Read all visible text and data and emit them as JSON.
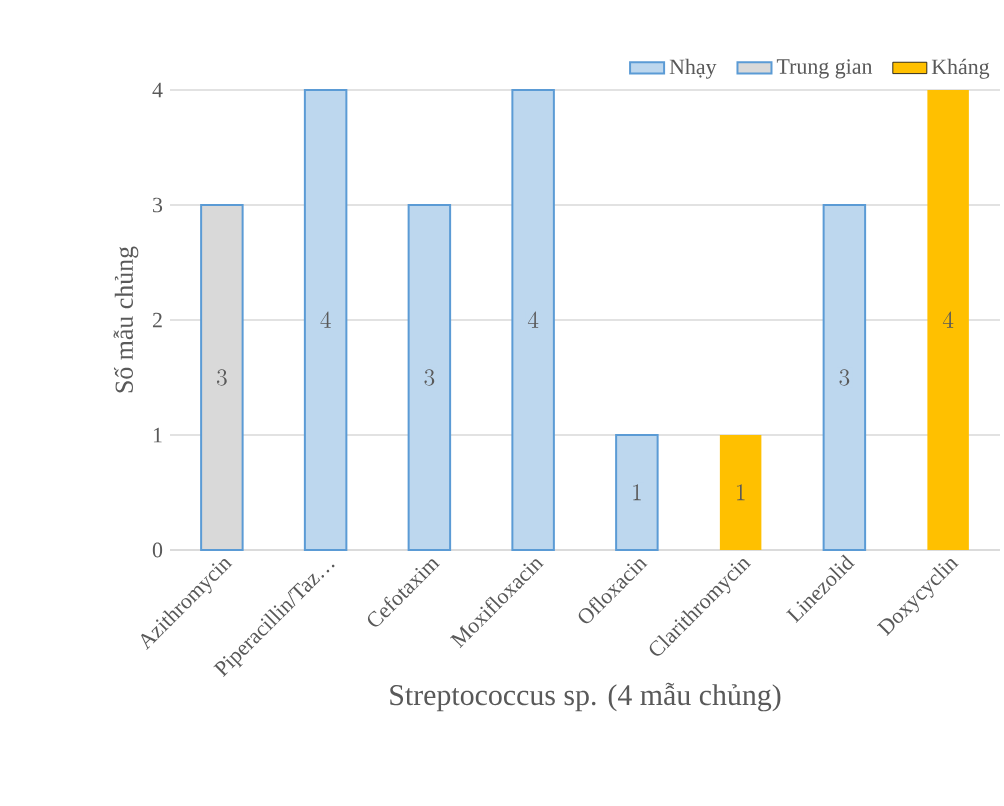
{
  "chart_data": {
    "type": "bar",
    "stacked": true,
    "xlabel": "Streptococcus sp. (4 mẫu chủng)",
    "ylabel": "Số mẫu chủng",
    "categories": [
      "Azithromycin",
      "Piperacillin/Taz…",
      "Cefotaxim",
      "Moxifloxacin",
      "Ofloxacin",
      "Clarithromycin",
      "Linezolid",
      "Doxycyclin"
    ],
    "series": [
      {
        "name": "Nhạy",
        "color": "#bdd7ee",
        "values": [
          null,
          4,
          3,
          4,
          1,
          null,
          3,
          null
        ]
      },
      {
        "name": "Trung gian",
        "color": "#d9d9d9",
        "values": [
          3,
          null,
          null,
          null,
          null,
          null,
          null,
          null
        ]
      },
      {
        "name": "Kháng",
        "color": "#ffc000",
        "values": [
          null,
          null,
          null,
          null,
          null,
          1,
          null,
          4
        ]
      }
    ],
    "ylim": [
      0,
      4
    ],
    "yticks": [
      0,
      1,
      2,
      3,
      4
    ],
    "grid": "y",
    "legend": "top right",
    "data_labels": true
  }
}
